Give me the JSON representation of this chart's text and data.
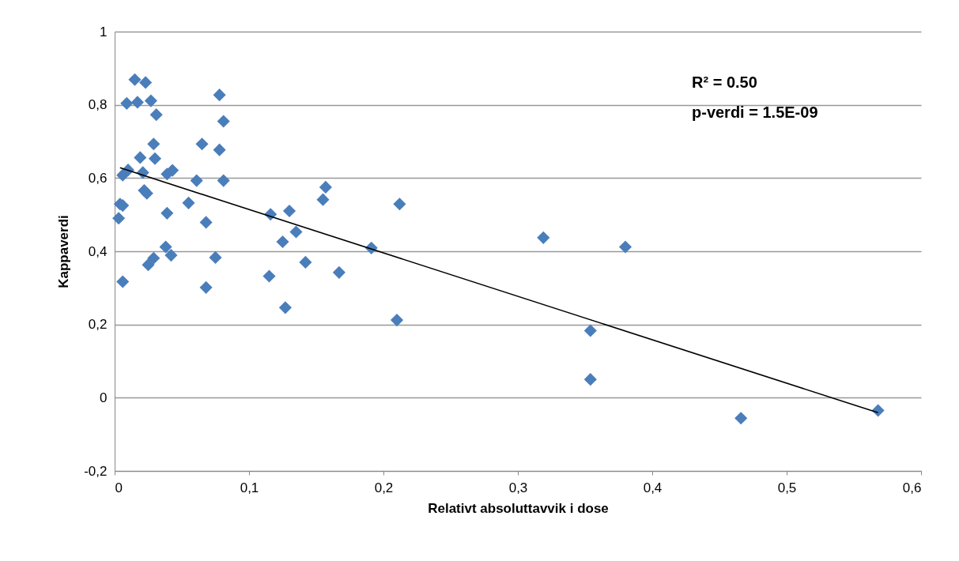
{
  "chart_data": {
    "type": "scatter",
    "xlabel": "Relativt absoluttavvik i dose",
    "ylabel": "Kappaverdi",
    "annotations": [
      "R² = 0.50",
      "p-verdi = 1.5E-09"
    ],
    "xlim": [
      0,
      0.6
    ],
    "ylim": [
      -0.2,
      1
    ],
    "xticks": [
      0,
      {
        "value": 0.1,
        "label": "0,1"
      },
      {
        "value": 0.2,
        "label": "0,2"
      },
      {
        "value": 0.3,
        "label": "0,3"
      },
      {
        "value": 0.4,
        "label": "0,4"
      },
      {
        "value": 0.5,
        "label": "0,5"
      },
      {
        "value": 0.6,
        "label": "0,6"
      }
    ],
    "yticks": [
      {
        "value": -0.2,
        "label": "-0,2"
      },
      0,
      {
        "value": 0.2,
        "label": "0,2"
      },
      {
        "value": 0.4,
        "label": "0,4"
      },
      {
        "value": 0.6,
        "label": "0,6"
      },
      {
        "value": 0.8,
        "label": "0,8"
      },
      1
    ],
    "grid": "y",
    "series": [
      {
        "marker": "diamond",
        "color": "#4a7ebb",
        "x": [
          0.015,
          0.023,
          0.009,
          0.017,
          0.027,
          0.031,
          0.078,
          0.081,
          0.029,
          0.065,
          0.078,
          0.019,
          0.03,
          0.01,
          0.006,
          0.021,
          0.039,
          0.043,
          0.061,
          0.081,
          0.022,
          0.024,
          0.004,
          0.006,
          0.003,
          0.039,
          0.055,
          0.068,
          0.006,
          0.068,
          0.025,
          0.029,
          0.038,
          0.042,
          0.075,
          0.116,
          0.13,
          0.135,
          0.125,
          0.142,
          0.115,
          0.127,
          0.167,
          0.157,
          0.155,
          0.191,
          0.212,
          0.21,
          0.319,
          0.38,
          0.354,
          0.354,
          0.466,
          0.568
        ],
        "values": [
          0.869,
          0.861,
          0.804,
          0.807,
          0.811,
          0.773,
          0.827,
          0.755,
          0.693,
          0.693,
          0.677,
          0.656,
          0.653,
          0.622,
          0.608,
          0.615,
          0.611,
          0.621,
          0.593,
          0.593,
          0.566,
          0.558,
          0.529,
          0.525,
          0.49,
          0.504,
          0.532,
          0.479,
          0.317,
          0.301,
          0.363,
          0.381,
          0.412,
          0.389,
          0.383,
          0.501,
          0.51,
          0.453,
          0.426,
          0.37,
          0.332,
          0.246,
          0.342,
          0.575,
          0.541,
          0.409,
          0.529,
          0.212,
          0.437,
          0.412,
          0.183,
          0.05,
          -0.056,
          -0.035
        ]
      },
      {
        "type": "line",
        "color": "#000000",
        "x": [
          0.004,
          0.568
        ],
        "values": [
          0.628,
          -0.041
        ]
      }
    ]
  }
}
